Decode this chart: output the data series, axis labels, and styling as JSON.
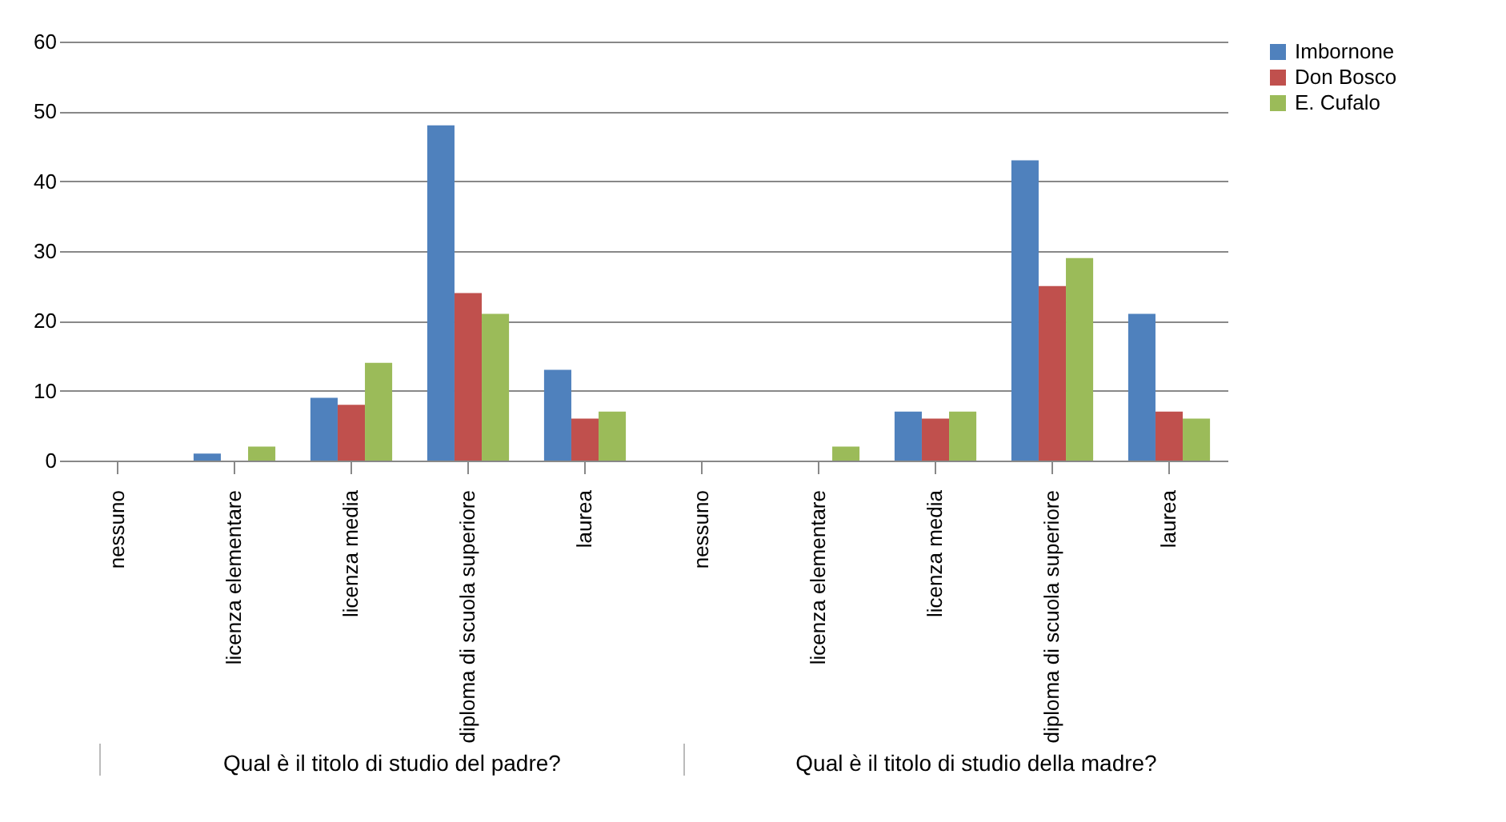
{
  "chart_data": {
    "type": "bar",
    "categories": [
      "nessuno",
      "licenza elementare",
      "licenza media",
      "diploma di scuola superiore",
      "laurea",
      "nessuno",
      "licenza elementare",
      "licenza media",
      "diploma di scuola superiore",
      "laurea"
    ],
    "series": [
      {
        "name": "Imbornone",
        "color": "#4f81bd",
        "values": [
          0,
          1,
          9,
          48,
          13,
          0,
          0,
          7,
          43,
          21
        ]
      },
      {
        "name": "Don Bosco",
        "color": "#c0504d",
        "values": [
          0,
          0,
          8,
          24,
          6,
          0,
          0,
          6,
          25,
          7
        ]
      },
      {
        "name": "E. Cufalo",
        "color": "#9bbb59",
        "values": [
          0,
          2,
          14,
          21,
          7,
          0,
          2,
          7,
          29,
          6
        ]
      }
    ],
    "ylim": [
      0,
      60
    ],
    "yticks": [
      0,
      10,
      20,
      30,
      40,
      50,
      60
    ],
    "grid": "y",
    "legend": "right",
    "annotations": [
      "Qual è il titolo di studio del padre?",
      "Qual è il titolo di studio della madre?"
    ]
  }
}
